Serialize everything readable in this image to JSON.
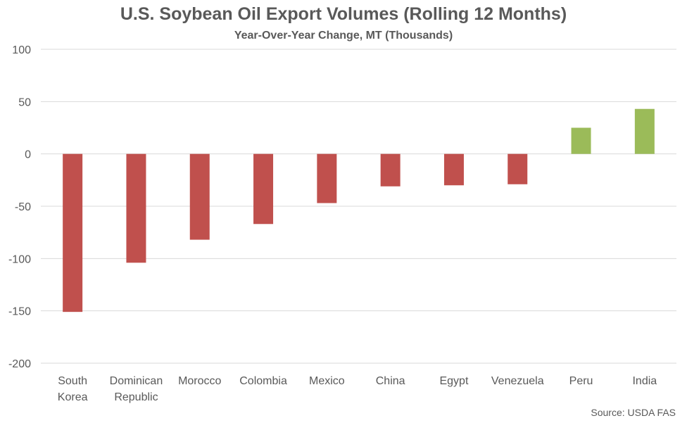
{
  "chart_data": {
    "type": "bar",
    "title": "U.S. Soybean Oil Export Volumes (Rolling 12 Months)",
    "subtitle": "Year-Over-Year Change, MT (Thousands)",
    "categories": [
      "South Korea",
      "Dominican Republic",
      "Morocco",
      "Colombia",
      "Mexico",
      "China",
      "Egypt",
      "Venezuela",
      "Peru",
      "India"
    ],
    "category_lines": [
      [
        "South",
        "Korea"
      ],
      [
        "Dominican",
        "Republic"
      ],
      [
        "Morocco"
      ],
      [
        "Colombia"
      ],
      [
        "Mexico"
      ],
      [
        "China"
      ],
      [
        "Egypt"
      ],
      [
        "Venezuela"
      ],
      [
        "Peru"
      ],
      [
        "India"
      ]
    ],
    "values": [
      -151,
      -104,
      -82,
      -67,
      -47,
      -31,
      -30,
      -29,
      25,
      43
    ],
    "ylim": [
      -200,
      100
    ],
    "yticks": [
      100,
      50,
      0,
      -50,
      -100,
      -150,
      -200
    ],
    "xlabel": "",
    "ylabel": "",
    "grid": true,
    "colors": {
      "negative": "#c0504d",
      "positive": "#9bbb59",
      "grid": "#d9d9d9",
      "text": "#595959"
    },
    "source": "Source: USDA FAS"
  }
}
